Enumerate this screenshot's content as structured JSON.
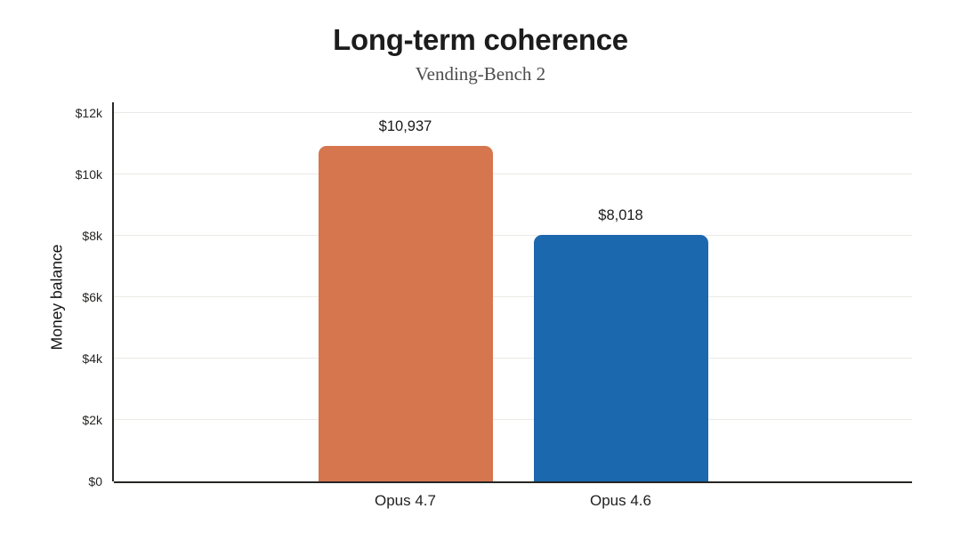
{
  "header": {
    "title": "Long-term coherence",
    "subtitle": "Vending-Bench 2"
  },
  "chart_data": {
    "type": "bar",
    "title": "Long-term coherence",
    "subtitle": "Vending-Bench 2",
    "categories": [
      "Opus 4.7",
      "Opus 4.6"
    ],
    "values": [
      10937,
      8018
    ],
    "value_labels": [
      "$10,937",
      "$8,018"
    ],
    "bar_colors": [
      "#d5764f",
      "#1c68ae"
    ],
    "xlabel": "",
    "ylabel": "Money balance",
    "ylim": [
      0,
      12000
    ],
    "yticks": [
      0,
      2000,
      4000,
      6000,
      8000,
      10000,
      12000
    ],
    "ytick_labels": [
      "$0",
      "$2k",
      "$4k",
      "$6k",
      "$8k",
      "$10k",
      "$12k"
    ],
    "grid": true,
    "legend": false
  },
  "style": {
    "background_color": "#ffffff",
    "grid_color": "#eceae5",
    "axis_color": "#262625",
    "title_color": "#1c1c1c",
    "subtitle_color": "#4c4c4c",
    "label_color": "#1a1a1a"
  }
}
